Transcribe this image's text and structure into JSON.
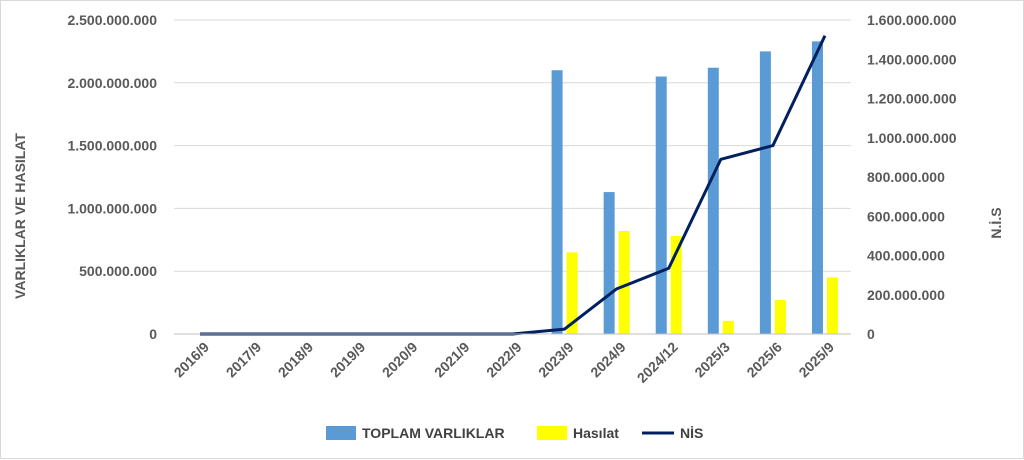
{
  "chart_data": {
    "type": "bar",
    "categories": [
      "2016/9",
      "2017/9",
      "2018/9",
      "2019/9",
      "2020/9",
      "2021/9",
      "2022/9",
      "2023/9",
      "2024/9",
      "2024/12",
      "2025/3",
      "2025/6",
      "2025/9"
    ],
    "ylabel": "VARLIKLAR VE HASILAT",
    "y2label": "N.İ.S",
    "ylim": [
      0,
      2500000000
    ],
    "y2lim": [
      0,
      1600000000
    ],
    "yticks": [
      "0",
      "500.000.000",
      "1.000.000.000",
      "1.500.000.000",
      "2.000.000.000",
      "2.500.000.000"
    ],
    "y2ticks": [
      "0",
      "200.000.000",
      "400.000.000",
      "600.000.000",
      "800.000.000",
      "1.000.000.000",
      "1.200.000.000",
      "1.400.000.000",
      "1.600.000.000"
    ],
    "grid": true,
    "legend_position": "bottom",
    "series": [
      {
        "name": "TOPLAM VARLIKLAR",
        "kind": "bar",
        "axis": "left",
        "color": "#5b9bd5",
        "values": [
          0,
          0,
          0,
          0,
          0,
          0,
          0,
          2100000000,
          1130000000,
          2050000000,
          2120000000,
          2250000000,
          2330000000
        ]
      },
      {
        "name": "Hasılat",
        "kind": "bar",
        "axis": "left",
        "color": "#ffff00",
        "values": [
          0,
          0,
          0,
          0,
          0,
          0,
          0,
          650000000,
          820000000,
          780000000,
          105000000,
          270000000,
          450000000
        ]
      },
      {
        "name": "NİS",
        "kind": "line",
        "axis": "right",
        "color": "#002060",
        "values": [
          0,
          0,
          0,
          0,
          0,
          0,
          0,
          25000000,
          230000000,
          335000000,
          890000000,
          960000000,
          1520000000
        ]
      }
    ]
  }
}
